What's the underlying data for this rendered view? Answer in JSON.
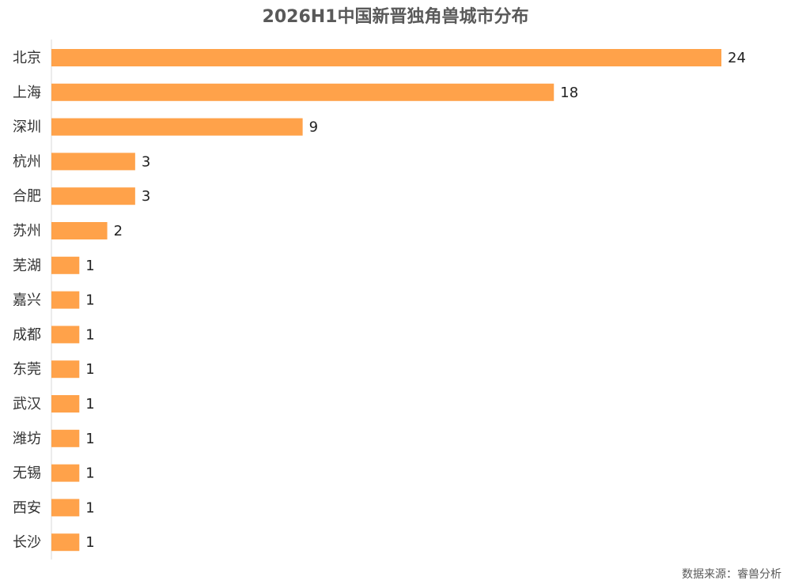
{
  "chart_data": {
    "type": "bar",
    "orientation": "horizontal",
    "title": "2026H1中国新晋独角兽城市分布",
    "source": "数据来源：睿兽分析",
    "categories": [
      "北京",
      "上海",
      "深圳",
      "杭州",
      "合肥",
      "苏州",
      "芜湖",
      "嘉兴",
      "成都",
      "东莞",
      "武汉",
      "潍坊",
      "无锡",
      "西安",
      "长沙"
    ],
    "values": [
      24,
      18,
      9,
      3,
      3,
      2,
      1,
      1,
      1,
      1,
      1,
      1,
      1,
      1,
      1
    ],
    "color": "#ffa24a"
  }
}
